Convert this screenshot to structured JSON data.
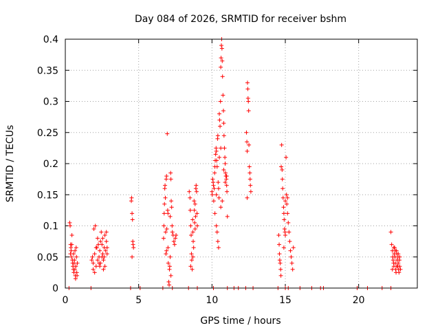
{
  "chart_data": {
    "type": "scatter",
    "title": "Day 084 of 2026, SRMTID for receiver bshm",
    "xlabel": "GPS time / hours",
    "ylabel": "SRMTID / TECUs",
    "xlim": [
      0,
      24
    ],
    "ylim": [
      0,
      0.4
    ],
    "xticks": [
      0,
      5,
      10,
      15,
      20
    ],
    "yticks": [
      0,
      0.05,
      0.1,
      0.15,
      0.2,
      0.25,
      0.3,
      0.35,
      0.4
    ],
    "xtick_labels": [
      "0",
      "5",
      "10",
      "15",
      "20"
    ],
    "ytick_labels": [
      "0",
      "0.05",
      "0.1",
      "0.15",
      "0.2",
      "0.25",
      "0.3",
      "0.35",
      "0.4"
    ],
    "grid": true,
    "marker": "+",
    "color": "#ff0000",
    "series": [
      {
        "name": "SRMTID",
        "points": [
          [
            0.25,
            0.0
          ],
          [
            0.3,
            0.105
          ],
          [
            0.33,
            0.1
          ],
          [
            0.36,
            0.07
          ],
          [
            0.38,
            0.065
          ],
          [
            0.4,
            0.06
          ],
          [
            0.42,
            0.05
          ],
          [
            0.45,
            0.085
          ],
          [
            0.48,
            0.045
          ],
          [
            0.5,
            0.04
          ],
          [
            0.52,
            0.035
          ],
          [
            0.55,
            0.03
          ],
          [
            0.58,
            0.025
          ],
          [
            0.6,
            0.04
          ],
          [
            0.62,
            0.045
          ],
          [
            0.65,
            0.03
          ],
          [
            0.68,
            0.02
          ],
          [
            0.7,
            0.015
          ],
          [
            0.72,
            0.035
          ],
          [
            0.74,
            0.065
          ],
          [
            0.76,
            0.05
          ],
          [
            0.78,
            0.025
          ],
          [
            0.8,
            0.02
          ],
          [
            0.82,
            0.04
          ],
          [
            0.35,
            0.055
          ],
          [
            0.44,
            0.07
          ],
          [
            0.56,
            0.055
          ],
          [
            0.66,
            0.06
          ],
          [
            1.75,
            0.0
          ],
          [
            1.8,
            0.045
          ],
          [
            1.85,
            0.05
          ],
          [
            1.9,
            0.04
          ],
          [
            1.95,
            0.095
          ],
          [
            2.0,
            0.055
          ],
          [
            2.05,
            0.1
          ],
          [
            2.1,
            0.035
          ],
          [
            2.15,
            0.065
          ],
          [
            2.2,
            0.045
          ],
          [
            2.25,
            0.07
          ],
          [
            2.3,
            0.05
          ],
          [
            2.35,
            0.06
          ],
          [
            2.4,
            0.04
          ],
          [
            2.45,
            0.09
          ],
          [
            2.5,
            0.05
          ],
          [
            2.55,
            0.055
          ],
          [
            2.6,
            0.045
          ],
          [
            2.65,
            0.065
          ],
          [
            2.7,
            0.035
          ],
          [
            2.75,
            0.06
          ],
          [
            2.8,
            0.075
          ],
          [
            2.85,
            0.055
          ],
          [
            1.9,
            0.03
          ],
          [
            2.0,
            0.025
          ],
          [
            2.2,
            0.08
          ],
          [
            2.4,
            0.075
          ],
          [
            2.6,
            0.03
          ],
          [
            2.7,
            0.085
          ],
          [
            2.1,
            0.065
          ],
          [
            2.3,
            0.04
          ],
          [
            2.5,
            0.07
          ],
          [
            2.65,
            0.05
          ],
          [
            2.8,
            0.09
          ],
          [
            2.85,
            0.065
          ],
          [
            2.35,
            0.035
          ],
          [
            2.55,
            0.08
          ],
          [
            4.45,
            0.0
          ],
          [
            4.5,
            0.14
          ],
          [
            4.52,
            0.145
          ],
          [
            4.55,
            0.12
          ],
          [
            4.58,
            0.11
          ],
          [
            4.6,
            0.075
          ],
          [
            4.62,
            0.07
          ],
          [
            4.65,
            0.065
          ],
          [
            4.55,
            0.05
          ],
          [
            5.1,
            0.0
          ],
          [
            6.65,
            0.0
          ],
          [
            6.7,
            0.08
          ],
          [
            6.72,
            0.1
          ],
          [
            6.74,
            0.12
          ],
          [
            6.76,
            0.135
          ],
          [
            6.78,
            0.16
          ],
          [
            6.8,
            0.165
          ],
          [
            6.82,
            0.145
          ],
          [
            6.84,
            0.09
          ],
          [
            6.86,
            0.055
          ],
          [
            6.88,
            0.175
          ],
          [
            6.9,
            0.18
          ],
          [
            6.92,
            0.095
          ],
          [
            6.95,
            0.248
          ],
          [
            6.98,
            0.125
          ],
          [
            7.0,
            0.065
          ],
          [
            7.02,
            0.04
          ],
          [
            7.05,
            0.01
          ],
          [
            7.08,
            0.005
          ],
          [
            7.1,
            0.03
          ],
          [
            7.12,
            0.035
          ],
          [
            7.15,
            0.115
          ],
          [
            7.18,
            0.185
          ],
          [
            7.2,
            0.175
          ],
          [
            7.22,
            0.14
          ],
          [
            7.25,
            0.13
          ],
          [
            7.28,
            0.1
          ],
          [
            7.3,
            0.09
          ],
          [
            7.35,
            0.085
          ],
          [
            7.4,
            0.075
          ],
          [
            7.45,
            0.07
          ],
          [
            7.5,
            0.08
          ],
          [
            7.55,
            0.085
          ],
          [
            7.3,
            0.0
          ],
          [
            7.0,
            0.12
          ],
          [
            6.9,
            0.06
          ],
          [
            7.15,
            0.05
          ],
          [
            7.2,
            0.02
          ],
          [
            8.4,
            0.0
          ],
          [
            8.45,
            0.155
          ],
          [
            8.5,
            0.145
          ],
          [
            8.52,
            0.125
          ],
          [
            8.55,
            0.1
          ],
          [
            8.58,
            0.085
          ],
          [
            8.6,
            0.055
          ],
          [
            8.62,
            0.045
          ],
          [
            8.65,
            0.03
          ],
          [
            8.68,
            0.11
          ],
          [
            8.7,
            0.09
          ],
          [
            8.72,
            0.075
          ],
          [
            8.75,
            0.065
          ],
          [
            8.78,
            0.14
          ],
          [
            8.8,
            0.125
          ],
          [
            8.82,
            0.105
          ],
          [
            8.85,
            0.095
          ],
          [
            8.88,
            0.115
          ],
          [
            8.9,
            0.16
          ],
          [
            8.92,
            0.165
          ],
          [
            8.95,
            0.155
          ],
          [
            8.98,
            0.12
          ],
          [
            9.0,
            0.1
          ],
          [
            8.55,
            0.035
          ],
          [
            8.7,
            0.05
          ],
          [
            8.85,
            0.135
          ],
          [
            9.0,
            0.0
          ],
          [
            10.0,
            0.155
          ],
          [
            10.02,
            0.15
          ],
          [
            10.05,
            0.175
          ],
          [
            10.08,
            0.17
          ],
          [
            10.1,
            0.165
          ],
          [
            10.12,
            0.14
          ],
          [
            10.15,
            0.16
          ],
          [
            10.18,
            0.185
          ],
          [
            10.2,
            0.195
          ],
          [
            10.22,
            0.205
          ],
          [
            10.25,
            0.215
          ],
          [
            10.28,
            0.225
          ],
          [
            10.3,
            0.22
          ],
          [
            10.32,
            0.205
          ],
          [
            10.35,
            0.195
          ],
          [
            10.38,
            0.24
          ],
          [
            10.4,
            0.245
          ],
          [
            10.42,
            0.17
          ],
          [
            10.45,
            0.16
          ],
          [
            10.48,
            0.145
          ],
          [
            10.5,
            0.28
          ],
          [
            10.52,
            0.27
          ],
          [
            10.55,
            0.26
          ],
          [
            10.58,
            0.3
          ],
          [
            10.6,
            0.355
          ],
          [
            10.62,
            0.37
          ],
          [
            10.64,
            0.39
          ],
          [
            10.66,
            0.4
          ],
          [
            10.68,
            0.385
          ],
          [
            10.7,
            0.365
          ],
          [
            10.72,
            0.34
          ],
          [
            10.75,
            0.31
          ],
          [
            10.78,
            0.285
          ],
          [
            10.8,
            0.265
          ],
          [
            10.82,
            0.245
          ],
          [
            10.85,
            0.225
          ],
          [
            10.88,
            0.21
          ],
          [
            10.9,
            0.2
          ],
          [
            10.92,
            0.185
          ],
          [
            10.95,
            0.18
          ],
          [
            10.98,
            0.175
          ],
          [
            11.0,
            0.165
          ],
          [
            11.02,
            0.155
          ],
          [
            11.05,
            0.115
          ],
          [
            10.2,
            0.12
          ],
          [
            10.3,
            0.1
          ],
          [
            10.35,
            0.09
          ],
          [
            10.4,
            0.075
          ],
          [
            10.45,
            0.065
          ],
          [
            10.6,
            0.13
          ],
          [
            10.7,
            0.14
          ],
          [
            10.3,
            0.15
          ],
          [
            10.5,
            0.21
          ],
          [
            10.6,
            0.225
          ],
          [
            10.8,
            0.19
          ],
          [
            10.9,
            0.17
          ],
          [
            11.0,
            0.18
          ],
          [
            10.1,
            0.0
          ],
          [
            11.05,
            0.0
          ],
          [
            11.5,
            0.0
          ],
          [
            11.8,
            0.0
          ],
          [
            12.3,
            0.0
          ],
          [
            12.35,
            0.25
          ],
          [
            12.38,
            0.235
          ],
          [
            12.4,
            0.22
          ],
          [
            12.42,
            0.33
          ],
          [
            12.44,
            0.32
          ],
          [
            12.46,
            0.305
          ],
          [
            12.48,
            0.3
          ],
          [
            12.5,
            0.285
          ],
          [
            12.52,
            0.23
          ],
          [
            12.55,
            0.195
          ],
          [
            12.58,
            0.185
          ],
          [
            12.6,
            0.175
          ],
          [
            12.62,
            0.165
          ],
          [
            12.65,
            0.155
          ],
          [
            12.4,
            0.145
          ],
          [
            12.8,
            0.0
          ],
          [
            14.5,
            0.0
          ],
          [
            14.55,
            0.085
          ],
          [
            14.58,
            0.07
          ],
          [
            14.6,
            0.055
          ],
          [
            14.62,
            0.045
          ],
          [
            14.65,
            0.04
          ],
          [
            14.68,
            0.03
          ],
          [
            14.7,
            0.02
          ],
          [
            14.72,
            0.195
          ],
          [
            14.75,
            0.23
          ],
          [
            14.78,
            0.19
          ],
          [
            14.8,
            0.175
          ],
          [
            14.82,
            0.16
          ],
          [
            14.85,
            0.145
          ],
          [
            14.88,
            0.13
          ],
          [
            14.9,
            0.12
          ],
          [
            14.92,
            0.11
          ],
          [
            14.95,
            0.095
          ],
          [
            14.98,
            0.09
          ],
          [
            15.0,
            0.085
          ],
          [
            15.05,
            0.21
          ],
          [
            15.08,
            0.15
          ],
          [
            15.1,
            0.135
          ],
          [
            15.15,
            0.12
          ],
          [
            15.2,
            0.105
          ],
          [
            15.25,
            0.09
          ],
          [
            15.3,
            0.075
          ],
          [
            15.35,
            0.06
          ],
          [
            15.4,
            0.05
          ],
          [
            15.45,
            0.04
          ],
          [
            15.5,
            0.03
          ],
          [
            15.55,
            0.065
          ],
          [
            14.9,
            0.065
          ],
          [
            15.0,
            0.14
          ],
          [
            15.15,
            0.145
          ],
          [
            15.0,
            0.0
          ],
          [
            15.2,
            0.0
          ],
          [
            16.0,
            0.0
          ],
          [
            16.8,
            0.0
          ],
          [
            17.4,
            0.0
          ],
          [
            17.6,
            0.0
          ],
          [
            19.9,
            0.0
          ],
          [
            20.6,
            0.0
          ],
          [
            21.6,
            0.0
          ],
          [
            22.2,
            0.0
          ],
          [
            22.2,
            0.09
          ],
          [
            22.25,
            0.07
          ],
          [
            22.3,
            0.06
          ],
          [
            22.32,
            0.05
          ],
          [
            22.35,
            0.045
          ],
          [
            22.38,
            0.04
          ],
          [
            22.4,
            0.035
          ],
          [
            22.42,
            0.055
          ],
          [
            22.45,
            0.065
          ],
          [
            22.48,
            0.05
          ],
          [
            22.5,
            0.04
          ],
          [
            22.52,
            0.03
          ],
          [
            22.55,
            0.025
          ],
          [
            22.58,
            0.06
          ],
          [
            22.6,
            0.055
          ],
          [
            22.62,
            0.045
          ],
          [
            22.65,
            0.035
          ],
          [
            22.68,
            0.05
          ],
          [
            22.7,
            0.04
          ],
          [
            22.72,
            0.03
          ],
          [
            22.75,
            0.025
          ],
          [
            22.78,
            0.045
          ],
          [
            22.8,
            0.035
          ],
          [
            22.85,
            0.03
          ],
          [
            22.3,
            0.03
          ],
          [
            22.4,
            0.065
          ],
          [
            22.5,
            0.06
          ],
          [
            22.6,
            0.035
          ],
          [
            22.7,
            0.055
          ],
          [
            22.8,
            0.05
          ]
        ]
      }
    ]
  }
}
